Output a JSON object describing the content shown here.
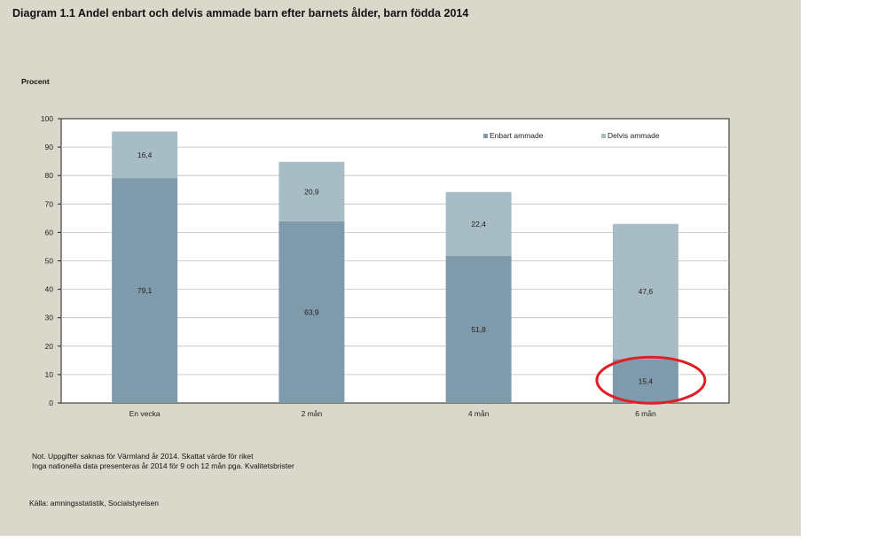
{
  "title": "Diagram 1.1 Andel enbart och  delvis ammade barn efter barnets ålder, barn födda 2014",
  "notes": [
    "Not. Uppgifter saknas för Värmland  år 2014. Skattat värde för riket",
    "Inga nationella data presenteras år 2014 för 9 och  12 mån  pga. Kvalitetsbrister"
  ],
  "source": "Källa: amningsstatistik, Socialstyrelsen",
  "colors": {
    "enbart": "#7f9aaa",
    "delvis": "#a8bcc5",
    "highlight": "#e11d25",
    "background": "#d9d8cb"
  },
  "chart_data": {
    "type": "bar",
    "stacked": true,
    "categories": [
      "En vecka",
      "2 mån",
      "4 mån",
      "6 mån"
    ],
    "series": [
      {
        "name": "Enbart ammade",
        "values": [
          79.1,
          63.9,
          51.8,
          15.4
        ],
        "labels": [
          "79,1",
          "63,9",
          "51,8",
          "15,4"
        ]
      },
      {
        "name": "Delvis ammade",
        "values": [
          16.4,
          20.9,
          22.4,
          47.6
        ],
        "labels": [
          "16,4",
          "20,9",
          "22,4",
          "47,6"
        ]
      }
    ],
    "ylabel": "Procent",
    "xlabel": "",
    "ylim": [
      0,
      100
    ],
    "yticks": [
      0,
      10,
      20,
      30,
      40,
      50,
      60,
      70,
      80,
      90,
      100
    ],
    "grid": true,
    "legend_position": "top-right",
    "annotation": {
      "type": "ellipse",
      "target_category": "6 mån",
      "target_series": "Enbart ammade"
    }
  }
}
